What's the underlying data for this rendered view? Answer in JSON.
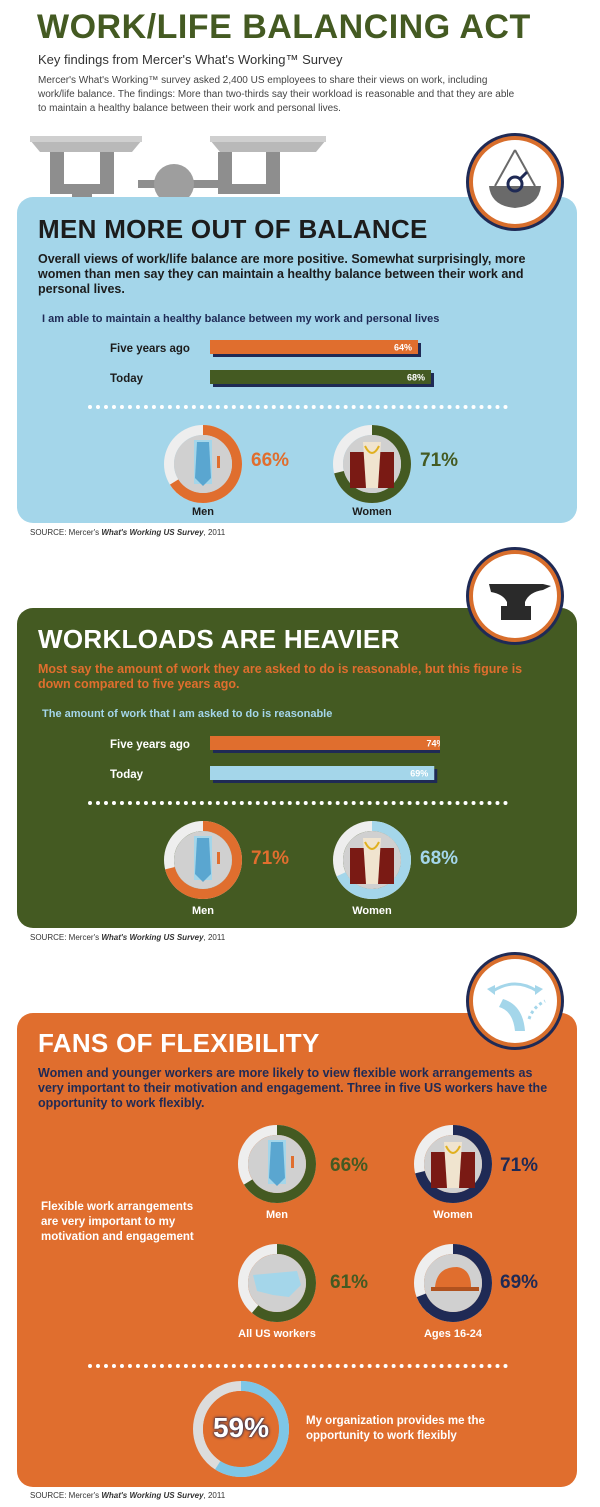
{
  "header": {
    "title": "WORK/LIFE BALANCING ACT",
    "subtitle": "Key findings from Mercer's What's Working™ Survey",
    "intro": "Mercer's What's Working™ survey asked 2,400 US employees to share their views on work, including work/life balance. The findings: More than two-thirds say their workload is reasonable and that they are able to maintain a healthy balance between their work and personal lives."
  },
  "colors": {
    "orange": "#e06e2e",
    "olive": "#445a22",
    "lightblue": "#a4d6ea",
    "navy": "#1f2a55",
    "gray": "#d5d5d5"
  },
  "source_prefix": "SOURCE: Mercer's ",
  "source_title": "What's Working US Survey",
  "source_suffix": ", 2011",
  "section1": {
    "title": "MEN MORE OUT OF BALANCE",
    "description": "Overall views of work/life balance are more positive. Somewhat surprisingly, more women than men say they can maintain a healthy balance between their work and personal lives.",
    "question": "I am able to maintain a healthy balance between my work and personal lives",
    "men_label": "Men",
    "women_label": "Women",
    "men_pct": "66%",
    "women_pct": "71%"
  },
  "section2": {
    "title": "WORKLOADS ARE HEAVIER",
    "description": "Most say the amount of work they are asked to do is reasonable, but this figure is down compared to five years ago.",
    "question": "The amount of work that I am asked to do is reasonable",
    "men_label": "Men",
    "women_label": "Women",
    "men_pct": "71%",
    "women_pct": "68%"
  },
  "section3": {
    "title": "FANS OF FLEXIBILITY",
    "description": "Women and younger workers are more likely to view flexible work arrangements as very important to their motivation and engagement. Three in five US workers have the opportunity to work flexibly.",
    "side_label": "Flexible work arrangements are very important to my motivation and engagement",
    "men_label": "Men",
    "women_label": "Women",
    "all_label": "All US workers",
    "young_label": "Ages 16-24",
    "men_pct": "66%",
    "women_pct": "71%",
    "all_pct": "61%",
    "young_pct": "69%",
    "big_pct": "59%",
    "big_label": "My organization provides me the opportunity to work flexibly"
  },
  "chart_data": [
    {
      "type": "bar",
      "title": "I am able to maintain a healthy balance between my work and personal lives",
      "categories": [
        "Five years ago",
        "Today"
      ],
      "values": [
        64,
        68
      ],
      "labels": [
        "64%",
        "68%"
      ],
      "xlim": [
        0,
        100
      ]
    },
    {
      "type": "pie",
      "categories": [
        "Men",
        "Women"
      ],
      "values": [
        66,
        71
      ]
    },
    {
      "type": "bar",
      "title": "The amount of work that I am asked to do is reasonable",
      "categories": [
        "Five years ago",
        "Today"
      ],
      "values": [
        74,
        69
      ],
      "labels": [
        "74%",
        "69%"
      ],
      "xlim": [
        0,
        100
      ]
    },
    {
      "type": "pie",
      "categories": [
        "Men",
        "Women"
      ],
      "values": [
        71,
        68
      ]
    },
    {
      "type": "pie",
      "categories": [
        "Men",
        "Women",
        "All US workers",
        "Ages 16-24"
      ],
      "values": [
        66,
        71,
        61,
        69
      ]
    },
    {
      "type": "pie",
      "title": "My organization provides me the opportunity to work flexibly",
      "values": [
        59
      ]
    }
  ]
}
